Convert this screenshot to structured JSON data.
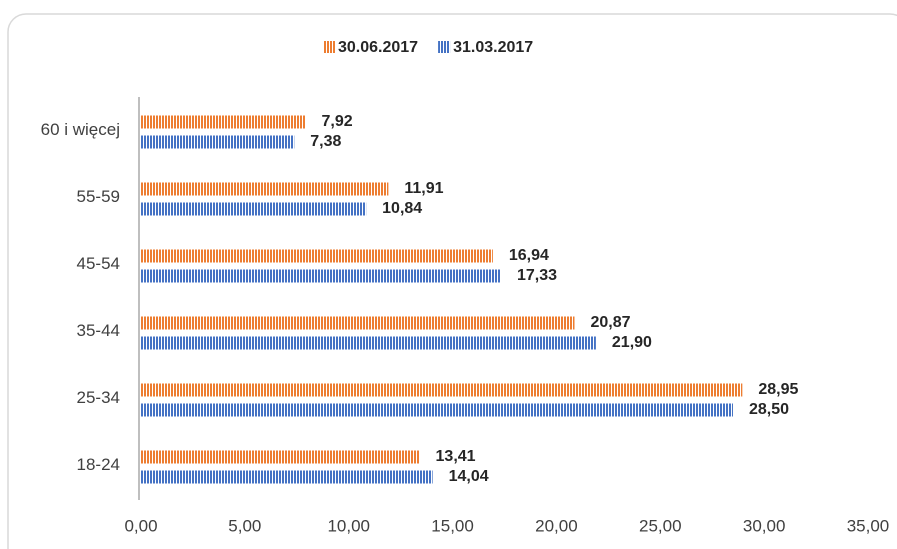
{
  "chart_data": {
    "type": "bar",
    "orientation": "horizontal",
    "categories": [
      "60 i więcej",
      "55-59",
      "45-54",
      "35-44",
      "25-34",
      "18-24"
    ],
    "series": [
      {
        "name": "30.06.2017",
        "color": "#ed7d31",
        "values": [
          7.92,
          11.91,
          16.94,
          20.87,
          28.95,
          13.41
        ],
        "value_labels": [
          "7,92",
          "11,91",
          "16,94",
          "20,87",
          "28,95",
          "13,41"
        ]
      },
      {
        "name": "31.03.2017",
        "color": "#4472c4",
        "values": [
          7.38,
          10.84,
          17.33,
          21.9,
          28.5,
          14.04
        ],
        "value_labels": [
          "7,38",
          "10,84",
          "17,33",
          "21,90",
          "28,50",
          "14,04"
        ]
      }
    ],
    "xlim": [
      0,
      35
    ],
    "xticks": [
      {
        "value": 0,
        "label": "0,00"
      },
      {
        "value": 5,
        "label": "5,00"
      },
      {
        "value": 10,
        "label": "10,00"
      },
      {
        "value": 15,
        "label": "15,00"
      },
      {
        "value": 20,
        "label": "20,00"
      },
      {
        "value": 25,
        "label": "25,00"
      },
      {
        "value": 30,
        "label": "30,00"
      },
      {
        "value": 35,
        "label": "35,00"
      }
    ],
    "legend": "top"
  }
}
